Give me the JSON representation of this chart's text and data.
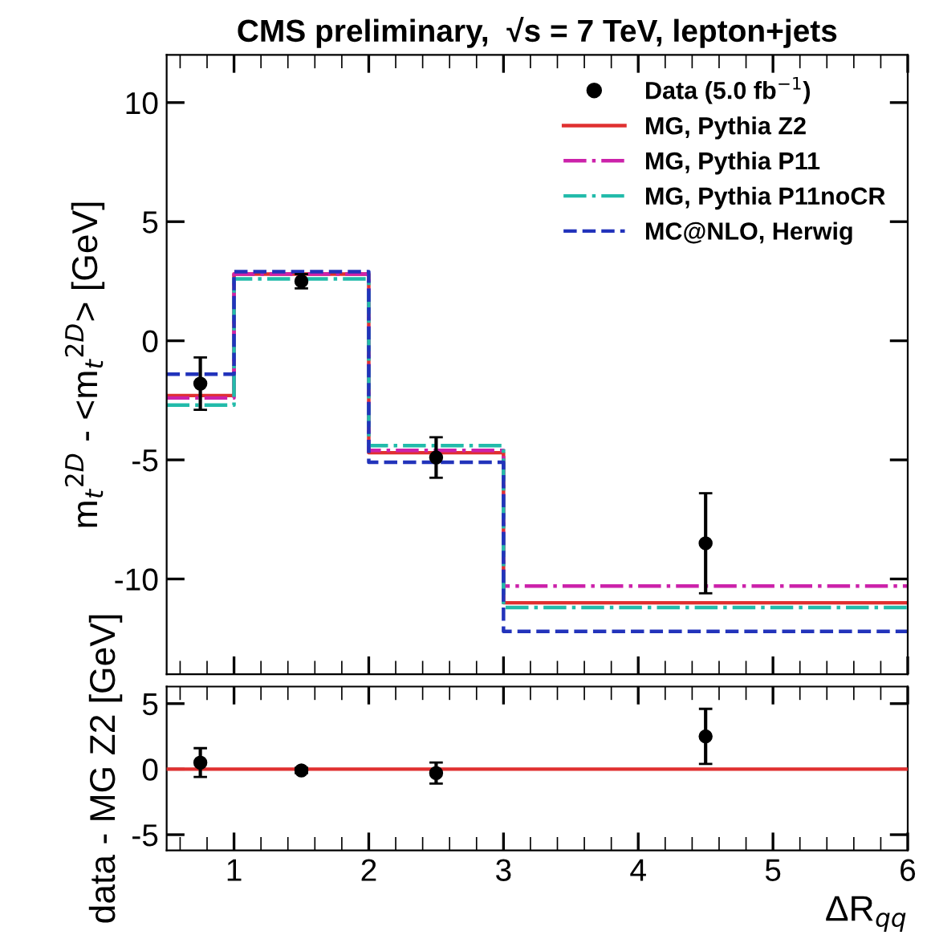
{
  "chart_data": [
    {
      "type": "step",
      "title": "CMS preliminary,  √s = 7 TeV, lepton+jets",
      "ylabel": "m$_{t}$$^{2D}$ - <m$_{t}$$^{2D}$> [GeV]",
      "xlim": [
        0.5,
        6
      ],
      "ylim": [
        -14,
        12
      ],
      "xticks": [
        1,
        2,
        3,
        4,
        5,
        6
      ],
      "yticks": [
        -10,
        -5,
        0,
        5,
        10
      ],
      "tick_labels": "y",
      "legend": "top right",
      "series": [
        {
          "name": "Data (5.0 fb$^{−1}$)",
          "type": "scatter",
          "color": "#000000",
          "marker": "circle",
          "x": [
            0.75,
            1.5,
            2.5,
            4.5
          ],
          "values": [
            -1.8,
            2.5,
            -4.9,
            -8.5
          ],
          "errors": [
            1.1,
            0.3,
            0.85,
            2.1
          ]
        },
        {
          "name": "MG, Pythia Z2",
          "color": "#e03030",
          "line_style": "solid",
          "x": [
            0.5,
            1,
            2,
            3,
            6
          ],
          "values": [
            -2.3,
            2.8,
            -4.7,
            -11.0,
            -11.0
          ]
        },
        {
          "name": "MG, Pythia P11",
          "color": "#cc22aa",
          "line_style": "dashdot",
          "x": [
            0.5,
            1,
            2,
            3,
            6
          ],
          "values": [
            -2.4,
            2.8,
            -4.6,
            -10.3,
            -10.3
          ]
        },
        {
          "name": "MG, Pythia P11noCR",
          "color": "#22bbaa",
          "line_style": "dashdot",
          "x": [
            0.5,
            1,
            2,
            3,
            6
          ],
          "values": [
            -2.7,
            2.6,
            -4.4,
            -11.2,
            -11.2
          ]
        },
        {
          "name": "MC@NLO, Herwig",
          "color": "#2233bb",
          "line_style": "dashed",
          "x": [
            0.5,
            1,
            2,
            3,
            6
          ],
          "values": [
            -1.4,
            2.9,
            -5.1,
            -12.2,
            -12.2
          ]
        }
      ]
    },
    {
      "type": "scatter",
      "xlabel": "ΔR$_{qq}$",
      "ylabel": "data - MG Z2 [GeV]",
      "xlim": [
        0.5,
        6
      ],
      "ylim": [
        -6.2,
        6.3
      ],
      "xticks": [
        1,
        2,
        3,
        4,
        5,
        6
      ],
      "yticks": [
        -5,
        0,
        5
      ],
      "legend": false,
      "ref_lines": [
        {
          "axis": "y",
          "value": 0,
          "color": "#e03030"
        }
      ],
      "series": [
        {
          "color": "#000000",
          "marker": "circle",
          "x": [
            0.75,
            1.5,
            2.5,
            4.5
          ],
          "values": [
            0.5,
            -0.1,
            -0.3,
            2.5
          ],
          "errors": [
            1.1,
            0.2,
            0.8,
            2.1
          ]
        }
      ]
    }
  ]
}
